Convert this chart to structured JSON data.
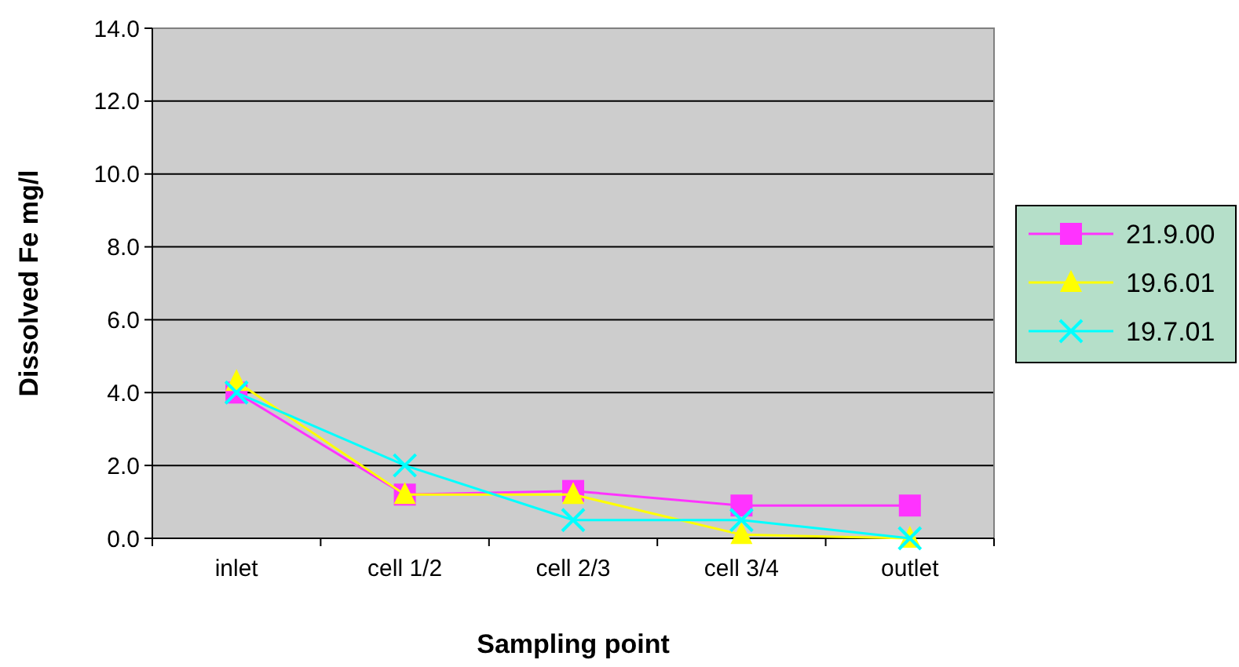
{
  "chart_data": {
    "type": "line",
    "xlabel": "Sampling point",
    "ylabel": "Dissolved Fe mg/l",
    "categories": [
      "inlet",
      "cell 1/2",
      "cell 2/3",
      "cell 3/4",
      "outlet"
    ],
    "series": [
      {
        "name": "21.9.00",
        "color": "#ff33ff",
        "marker": "square",
        "values": [
          4.0,
          1.2,
          1.3,
          0.9,
          0.9
        ]
      },
      {
        "name": "19.6.01",
        "color": "#ffff00",
        "marker": "triangle",
        "values": [
          4.3,
          1.2,
          1.2,
          0.1,
          0.0
        ]
      },
      {
        "name": "19.7.01",
        "color": "#00ffff",
        "marker": "cross",
        "values": [
          4.0,
          2.0,
          0.5,
          0.5,
          0.0
        ]
      }
    ],
    "ylim": [
      0,
      14
    ],
    "yticks": [
      {
        "value": 0,
        "label": "0.0"
      },
      {
        "value": 2,
        "label": "2.0"
      },
      {
        "value": 4,
        "label": "4.0"
      },
      {
        "value": 6,
        "label": "6.0"
      },
      {
        "value": 8,
        "label": "8.0"
      },
      {
        "value": 10,
        "label": "10.0"
      },
      {
        "value": 12,
        "label": "12.0"
      },
      {
        "value": 14,
        "label": "14.0"
      }
    ],
    "grid": "y",
    "legend": "right"
  }
}
